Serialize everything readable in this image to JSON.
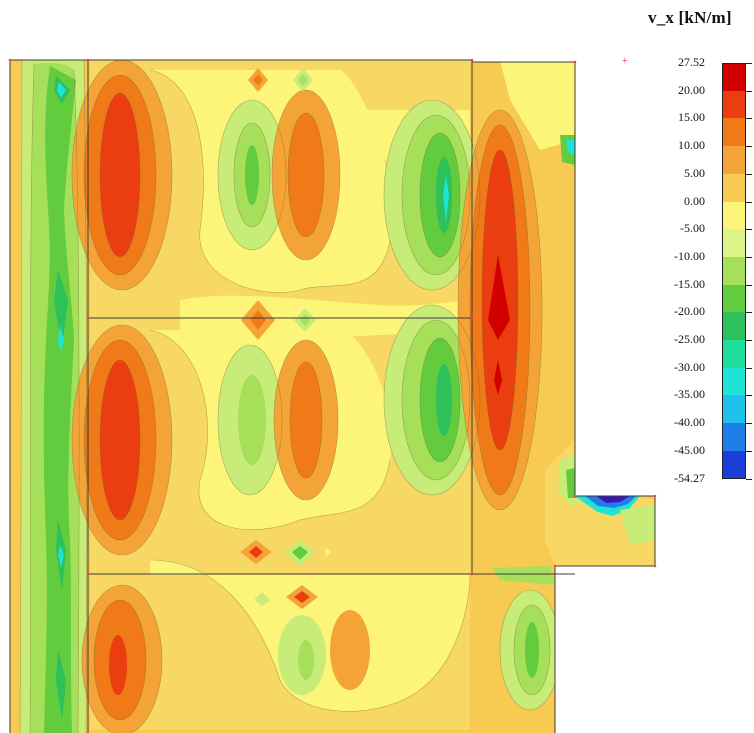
{
  "legend": {
    "title": "v_x [kN/m]",
    "labels": [
      "27.52",
      "20.00",
      "15.00",
      "10.00",
      "5.00",
      "0.00",
      "-5.00",
      "-10.00",
      "-15.00",
      "-20.00",
      "-25.00",
      "-30.00",
      "-35.00",
      "-40.00",
      "-45.00",
      "-54.27"
    ],
    "colors": [
      "#d00000",
      "#ea3d10",
      "#f07a18",
      "#f4a437",
      "#f7cb52",
      "#fdf57a",
      "#def58a",
      "#a6e05a",
      "#62cb3e",
      "#2ec05a",
      "#1fdd9b",
      "#20e3d7",
      "#1fc0ea",
      "#1f7ee8",
      "#1a3ed6",
      "#3a17b4"
    ]
  },
  "palette": {
    "deep_red": "#e03a10",
    "red": "#ea3d10",
    "orange": "#f07a18",
    "light_orange": "#f4a437",
    "yellow_orange": "#f7cb52",
    "pale_yellow": "#fdf57a",
    "light_green": "#c8ec78",
    "green": "#a6e05a",
    "mid_green": "#62cb3e",
    "dark_green": "#2ec05a",
    "teal": "#20e3d7",
    "blue": "#1a3ed6",
    "indigo": "#3a17b4"
  }
}
